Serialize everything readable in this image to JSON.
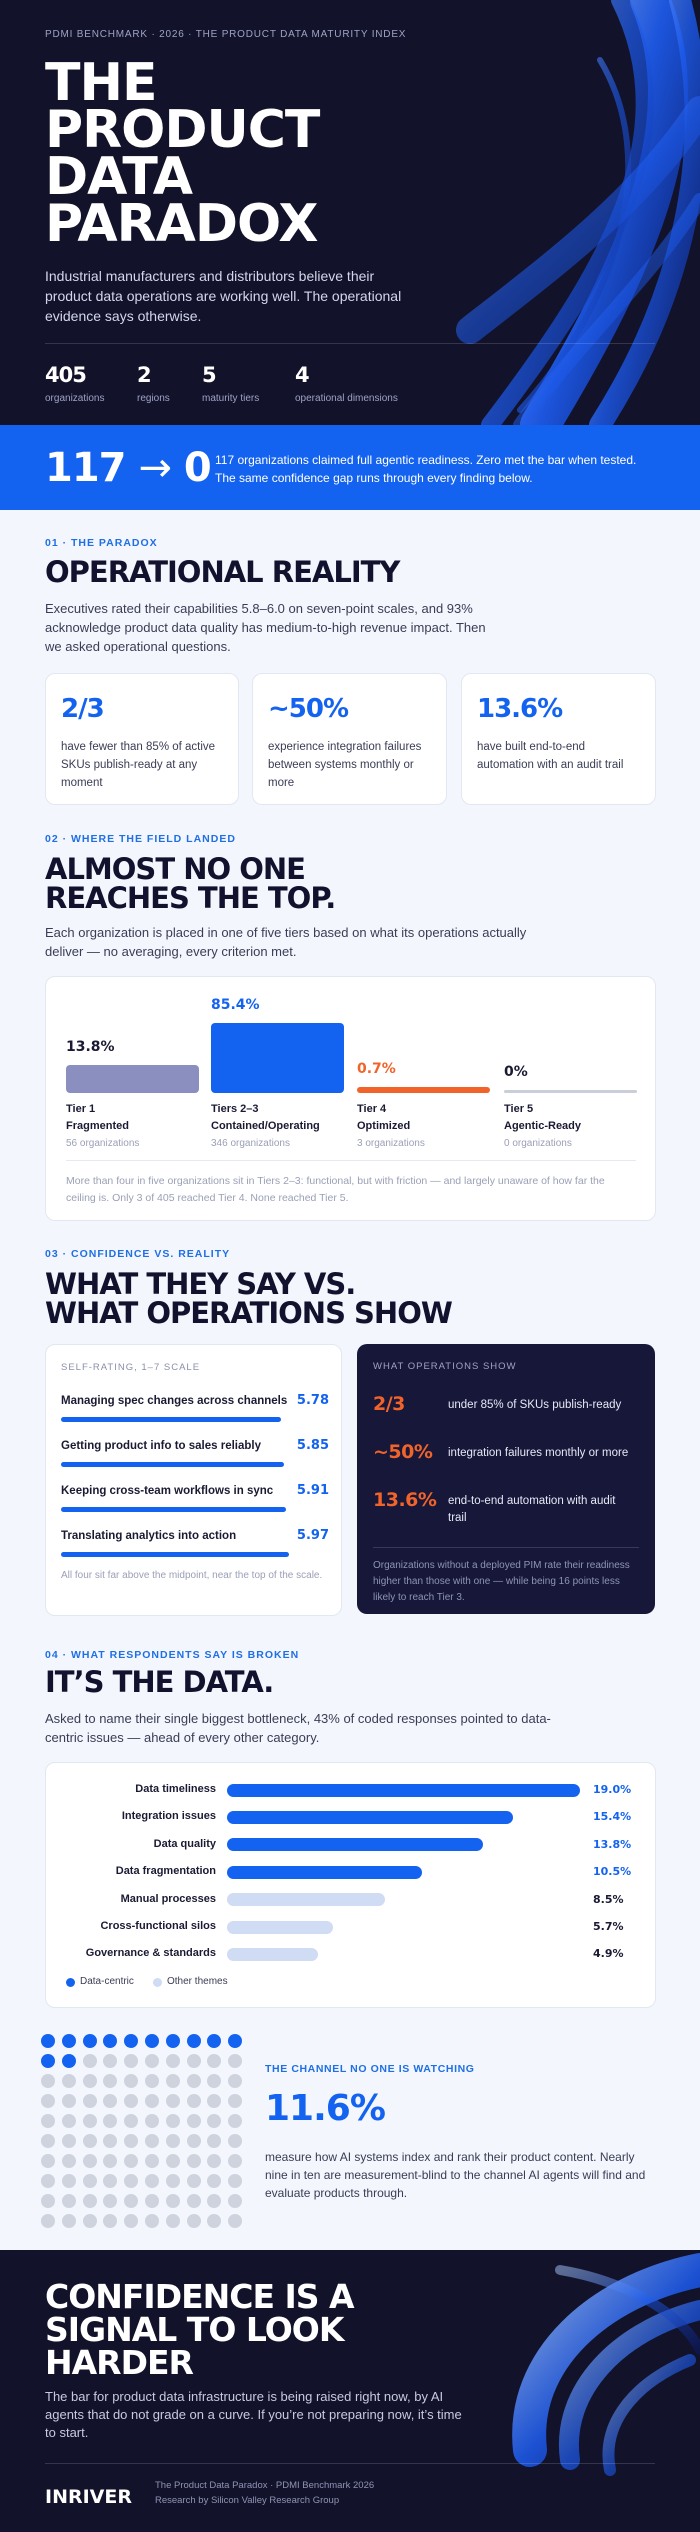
{
  "hero": {
    "kicker": "PDMI BENCHMARK · 2026 · THE PRODUCT DATA MATURITY INDEX",
    "title_lines": [
      "THE",
      "PRODUCT",
      "DATA",
      "PARADOX"
    ],
    "subtitle": "Industrial manufacturers and distributors believe their product data operations are working well. The operational evidence says otherwise.",
    "stats": [
      {
        "value": 405,
        "label": "organizations"
      },
      {
        "value": 2,
        "label": "regions"
      },
      {
        "value": 5,
        "label": "maturity tiers"
      },
      {
        "value": 4,
        "label": "operational dimensions"
      }
    ]
  },
  "band": {
    "from": 117,
    "arrow": "→",
    "to": 0,
    "text": "117 organizations claimed full agentic readiness. Zero met the bar when tested. The same confidence gap runs through every finding below."
  },
  "paradox": {
    "label": "01 · THE PARADOX",
    "heading": "OPERATIONAL REALITY",
    "body": "Executives rated their capabilities 5.8–6.0 on seven-point scales, and 93% acknowledge product data quality has medium-to-high revenue impact. Then we asked operational questions.",
    "cards": [
      {
        "stat": "2/3",
        "text": "have fewer than 85% of active SKUs publish-ready at any moment"
      },
      {
        "stat": "~50%",
        "text": "experience integration failures between systems monthly or more"
      },
      {
        "stat": "13.6%",
        "text": "have built end-to-end automation with an audit trail"
      }
    ]
  },
  "tiers": {
    "label": "02 · WHERE THE FIELD LANDED",
    "heading_lines": [
      "ALMOST NO ONE",
      "REACHES THE TOP."
    ],
    "body": "Each organization is placed in one of five tiers based on what its operations actually deliver — no averaging, every criterion met.",
    "chart": {
      "type": "bar",
      "categories": [
        "Tier 1",
        "Tiers 2–3",
        "Tier 4",
        "Tier 5"
      ],
      "descriptions": [
        "Fragmented",
        "Contained/Operating",
        "Optimized",
        "Agentic-Ready"
      ],
      "counts": [
        "56 organizations",
        "346 organizations",
        "3 organizations",
        "0 organizations"
      ],
      "values": [
        13.8,
        85.4,
        0.7,
        0
      ],
      "value_labels": [
        "13.8%",
        "85.4%",
        "0.7%",
        "0%"
      ],
      "colors": [
        "#8a8fc0",
        "#1463f0",
        "#f0642a",
        "#c9ced9"
      ],
      "label_colors": [
        "#1a1a33",
        "#1463f0",
        "#f0642a",
        "#1a1a33"
      ]
    },
    "note": "More than four in five organizations sit in Tiers 2–3: functional, but with friction — and largely unaware of how far the ceiling is. Only 3 of 405 reached Tier 4. None reached Tier 5."
  },
  "confidence": {
    "label": "03 · CONFIDENCE VS. REALITY",
    "heading_lines": [
      "WHAT THEY SAY VS.",
      "WHAT OPERATIONS SHOW"
    ],
    "self_rating": {
      "type": "bar",
      "title": "SELF-RATING, 1–7 SCALE",
      "categories": [
        "Managing spec changes across channels",
        "Getting product info to sales reliably",
        "Keeping cross-team workflows in sync",
        "Translating analytics into action"
      ],
      "values": [
        5.78,
        5.85,
        5.91,
        5.97
      ],
      "xlim": [
        0,
        7
      ],
      "color": "#1463f0",
      "note": "All four sit far above the midpoint, near the top of the scale."
    },
    "operations": {
      "title": "WHAT OPERATIONS SHOW",
      "items": [
        {
          "stat": "2/3",
          "text": "under 85% of SKUs publish-ready"
        },
        {
          "stat": "~50%",
          "text": "integration failures monthly or more"
        },
        {
          "stat": "13.6%",
          "text": "end-to-end automation with audit trail"
        }
      ],
      "note": "Organizations without a deployed PIM rate their readiness higher than those with one — while being 16 points less likely to reach Tier 3."
    }
  },
  "bottleneck": {
    "label": "04 · WHAT RESPONDENTS SAY IS BROKEN",
    "heading": "IT’S THE DATA.",
    "body": "Asked to name their single biggest bottleneck, 43% of coded responses pointed to data-centric issues — ahead of every other category.",
    "chart": {
      "type": "bar",
      "orientation": "horizontal",
      "categories": [
        "Data timeliness",
        "Integration issues",
        "Data quality",
        "Data fragmentation",
        "Manual processes",
        "Cross-functional silos",
        "Governance & standards"
      ],
      "values": [
        19.0,
        15.4,
        13.8,
        10.5,
        8.5,
        5.7,
        4.9
      ],
      "value_labels": [
        "19.0%",
        "15.4%",
        "13.8%",
        "10.5%",
        "8.5%",
        "5.7%",
        "4.9%"
      ],
      "groups": [
        0,
        0,
        0,
        0,
        1,
        1,
        1
      ],
      "xlim": [
        0,
        19
      ],
      "legend": [
        {
          "name": "Data-centric",
          "color": "#1463f0"
        },
        {
          "name": "Other themes",
          "color": "#cfdcf3"
        }
      ]
    }
  },
  "channel": {
    "label": "THE CHANNEL NO ONE IS WATCHING",
    "value": 11.6,
    "value_label": "11.6%",
    "text": "measure how AI systems index and rank their product content. Nearly nine in ten are measurement-blind to the channel AI agents will find and evaluate products through."
  },
  "footer": {
    "heading_lines": [
      "CONFIDENCE IS A",
      "SIGNAL TO LOOK",
      "HARDER"
    ],
    "body": "The bar for product data infrastructure is being raised right now, by AI agents that do not grade on a curve. If you’re not preparing now, it’s time to start.",
    "logo": "INRIVER",
    "credit_lines": [
      "The Product Data Paradox · PDMI Benchmark 2026",
      "Research by Silicon Valley Research Group"
    ]
  }
}
